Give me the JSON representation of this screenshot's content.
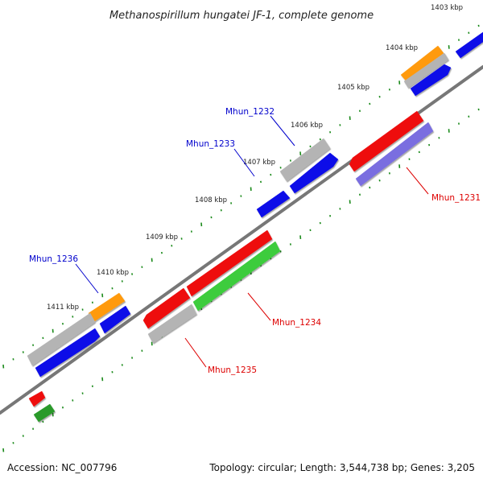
{
  "title": "Methanospirillum hungatei JF-1, complete genome",
  "footer": {
    "accession": "Accession: NC_007796",
    "summary": "Topology: circular; Length: 3,544,738 bp; Genes: 3,205"
  },
  "kbp_labels": [
    "1403 kbp",
    "1404 kbp",
    "1405 kbp",
    "1406 kbp",
    "1407 kbp",
    "1408 kbp",
    "1409 kbp",
    "1410 kbp",
    "1411 kbp"
  ],
  "gene_labels": [
    {
      "text": "Mhun_1231",
      "color": "#dd0000"
    },
    {
      "text": "Mhun_1232",
      "color": "#0000cc"
    },
    {
      "text": "Mhun_1233",
      "color": "#0000cc"
    },
    {
      "text": "Mhun_1234",
      "color": "#dd0000"
    },
    {
      "text": "Mhun_1235",
      "color": "#dd0000"
    },
    {
      "text": "Mhun_1236",
      "color": "#0000cc"
    }
  ],
  "colors": {
    "backbone": "#777777",
    "tick": "#1a8a1a",
    "red": "#ee1111",
    "blue": "#0a0ae8",
    "gray": "#b4b4b4",
    "orange": "#ff9a10",
    "green": "#3ccc3c",
    "purple": "#7a6ee0",
    "darkgreen": "#2a9a2a"
  }
}
